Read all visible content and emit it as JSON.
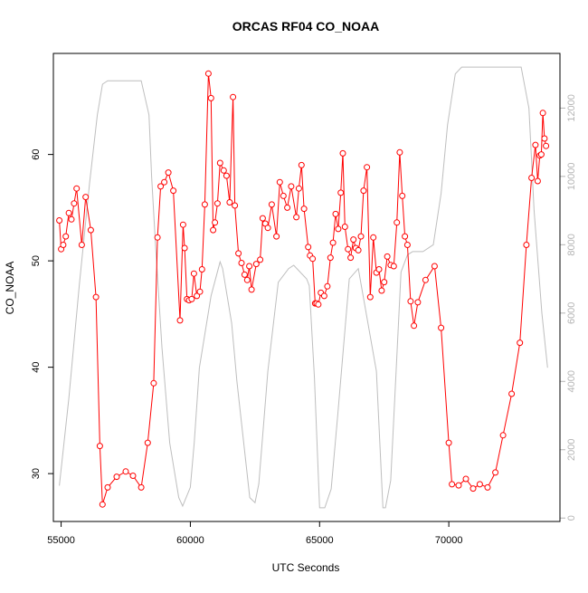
{
  "chart_data": {
    "type": "line",
    "title": "ORCAS RF04 CO_NOAA",
    "xlabel": "UTC Seconds",
    "ylabel": "CO_NOAA",
    "xlim": [
      54700,
      74300
    ],
    "ylim": [
      25.5,
      69.5
    ],
    "y2lim": [
      -100,
      13600
    ],
    "x_ticks": [
      55000,
      60000,
      65000,
      70000
    ],
    "y_ticks": [
      30,
      40,
      50,
      60
    ],
    "y2_ticks": [
      0,
      2000,
      4000,
      6000,
      8000,
      10000,
      12000
    ],
    "grid": false,
    "colors": {
      "primary": "#ff0000",
      "secondary": "#bebebe",
      "axis": "#000000",
      "right_axis_labels": "#b4b4b4"
    },
    "series": [
      {
        "style": "line-with-open-circles",
        "color": "#ff0000",
        "axis": "left",
        "x": [
          54930,
          55000,
          55080,
          55180,
          55300,
          55400,
          55500,
          55600,
          55800,
          55950,
          56150,
          56350,
          56500,
          56600,
          56800,
          57150,
          57500,
          57780,
          58100,
          58350,
          58580,
          58730,
          58850,
          58990,
          59150,
          59340,
          59600,
          59720,
          59780,
          59870,
          59950,
          60050,
          60140,
          60250,
          60370,
          60450,
          60560,
          60700,
          60800,
          60880,
          60950,
          61050,
          61150,
          61290,
          61400,
          61520,
          61650,
          61720,
          61860,
          61980,
          62100,
          62200,
          62280,
          62370,
          62550,
          62700,
          62800,
          62900,
          63000,
          63150,
          63330,
          63460,
          63600,
          63750,
          63900,
          64100,
          64200,
          64300,
          64400,
          64560,
          64630,
          64730,
          64830,
          64880,
          64950,
          65050,
          65180,
          65300,
          65420,
          65520,
          65620,
          65720,
          65820,
          65900,
          65980,
          66100,
          66200,
          66310,
          66400,
          66500,
          66600,
          66700,
          66830,
          66960,
          67080,
          67200,
          67300,
          67400,
          67500,
          67620,
          67750,
          67870,
          67990,
          68100,
          68200,
          68300,
          68400,
          68520,
          68650,
          68800,
          69100,
          69450,
          69700,
          70000,
          70120,
          70380,
          70660,
          70940,
          71200,
          71500,
          71800,
          72100,
          72430,
          72750,
          73000,
          73200,
          73350,
          73440,
          73520,
          73580,
          73640,
          73700,
          73760
        ],
        "values": [
          53.8,
          51.1,
          51.5,
          52.3,
          54.5,
          53.9,
          55.4,
          56.8,
          51.5,
          56.0,
          52.9,
          46.6,
          32.6,
          27.1,
          28.7,
          29.7,
          30.2,
          29.8,
          28.7,
          32.9,
          38.5,
          52.2,
          57.0,
          57.4,
          58.3,
          56.6,
          44.4,
          53.4,
          51.2,
          46.4,
          46.3,
          46.4,
          48.8,
          46.7,
          47.1,
          49.2,
          55.3,
          67.6,
          65.3,
          52.9,
          53.6,
          55.4,
          59.2,
          58.5,
          58.0,
          55.5,
          65.4,
          55.2,
          50.7,
          49.8,
          48.7,
          48.2,
          49.5,
          47.3,
          49.7,
          50.1,
          54.0,
          53.5,
          53.1,
          55.3,
          52.3,
          57.4,
          56.1,
          55.0,
          57.0,
          54.1,
          56.8,
          59.0,
          54.9,
          51.3,
          50.5,
          50.2,
          46.0,
          46.0,
          45.9,
          47.0,
          46.7,
          47.6,
          50.3,
          51.7,
          54.4,
          53.0,
          56.4,
          60.1,
          53.2,
          51.1,
          50.3,
          52.0,
          51.2,
          51.0,
          52.3,
          56.6,
          58.8,
          46.6,
          52.2,
          48.9,
          49.2,
          47.2,
          48.0,
          50.4,
          49.6,
          49.5,
          53.6,
          60.2,
          56.1,
          52.3,
          51.5,
          46.2,
          43.9,
          46.1,
          48.2,
          49.5,
          43.7,
          32.9,
          29.0,
          28.9,
          29.5,
          28.6,
          29.0,
          28.7,
          30.1,
          33.6,
          37.5,
          42.3,
          51.5,
          57.8,
          60.9,
          57.5,
          59.9,
          60.0,
          63.9,
          61.5,
          60.8
        ]
      },
      {
        "style": "line",
        "color": "#bebebe",
        "axis": "right",
        "x": [
          54930,
          55300,
          55700,
          56100,
          56400,
          56600,
          56800,
          57500,
          58100,
          58400,
          58500,
          58650,
          58900,
          59200,
          59550,
          59700,
          60000,
          60150,
          60350,
          60800,
          61150,
          61250,
          61600,
          61800,
          62300,
          62500,
          62650,
          63000,
          63400,
          63800,
          64000,
          64500,
          64600,
          64800,
          65000,
          65200,
          65450,
          65700,
          66150,
          66500,
          67200,
          67450,
          67550,
          67750,
          68150,
          68400,
          68600,
          69000,
          69400,
          69700,
          69950,
          70250,
          70500,
          71000,
          71700,
          72400,
          72800,
          73100,
          73300,
          73600,
          73820
        ],
        "values": [
          950,
          3500,
          6800,
          9800,
          11800,
          12700,
          12800,
          12800,
          12800,
          11800,
          10000,
          8000,
          5000,
          2200,
          600,
          350,
          900,
          2200,
          4400,
          6500,
          7500,
          7300,
          5700,
          4000,
          600,
          450,
          1000,
          4300,
          6900,
          7300,
          7400,
          7000,
          6800,
          4100,
          300,
          300,
          850,
          3000,
          7000,
          7300,
          4300,
          300,
          300,
          1100,
          7200,
          7700,
          7800,
          7800,
          8000,
          9500,
          11500,
          13000,
          13200,
          13200,
          13200,
          13200,
          13200,
          12000,
          9000,
          6000,
          4400
        ]
      }
    ]
  }
}
